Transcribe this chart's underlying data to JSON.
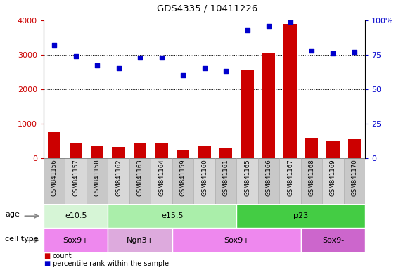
{
  "title": "GDS4335 / 10411226",
  "samples": [
    "GSM841156",
    "GSM841157",
    "GSM841158",
    "GSM841162",
    "GSM841163",
    "GSM841164",
    "GSM841159",
    "GSM841160",
    "GSM841161",
    "GSM841165",
    "GSM841166",
    "GSM841167",
    "GSM841168",
    "GSM841169",
    "GSM841170"
  ],
  "counts": [
    750,
    450,
    340,
    320,
    420,
    420,
    230,
    360,
    280,
    2540,
    3060,
    3900,
    580,
    500,
    570
  ],
  "percentile": [
    82,
    74,
    67,
    65,
    73,
    73,
    60,
    65,
    63,
    93,
    96,
    99,
    78,
    76,
    77
  ],
  "ylim_left": [
    0,
    4000
  ],
  "ylim_right": [
    0,
    100
  ],
  "yticks_left": [
    0,
    1000,
    2000,
    3000,
    4000
  ],
  "yticks_right": [
    0,
    25,
    50,
    75,
    100
  ],
  "ytick_labels_right": [
    "0",
    "25",
    "50",
    "75",
    "100%"
  ],
  "grid_values": [
    1000,
    2000,
    3000
  ],
  "age_groups": [
    {
      "label": "e10.5",
      "start": 0,
      "end": 3,
      "color": "#d6f5d6"
    },
    {
      "label": "e15.5",
      "start": 3,
      "end": 9,
      "color": "#aaeeaa"
    },
    {
      "label": "p23",
      "start": 9,
      "end": 15,
      "color": "#44cc44"
    }
  ],
  "cell_groups": [
    {
      "label": "Sox9+",
      "start": 0,
      "end": 3,
      "color": "#ee88ee"
    },
    {
      "label": "Ngn3+",
      "start": 3,
      "end": 6,
      "color": "#ddaadd"
    },
    {
      "label": "Sox9+",
      "start": 6,
      "end": 12,
      "color": "#ee88ee"
    },
    {
      "label": "Sox9-",
      "start": 12,
      "end": 15,
      "color": "#cc66cc"
    }
  ],
  "bar_color": "#cc0000",
  "dot_color": "#0000cc",
  "left_tick_color": "#cc0000",
  "right_tick_color": "#0000cc",
  "age_label": "age",
  "cell_label": "cell type",
  "legend_count": "count",
  "legend_pct": "percentile rank within the sample"
}
